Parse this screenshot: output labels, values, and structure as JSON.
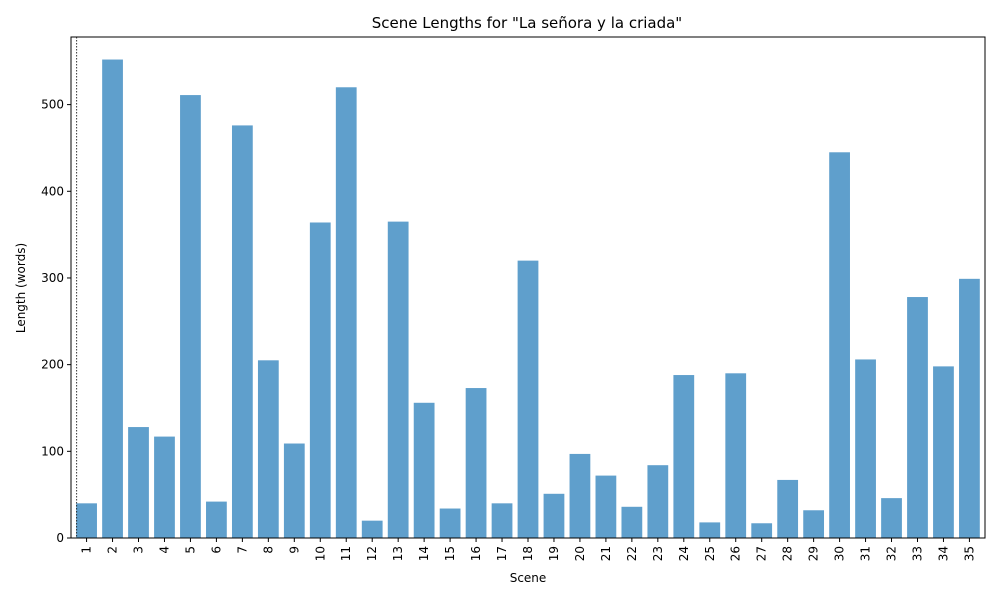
{
  "chart_data": {
    "type": "bar",
    "title": "Scene Lengths for \"La señora y la criada\"",
    "xlabel": "Scene",
    "ylabel": "Length (words)",
    "ylim": [
      0,
      578
    ],
    "yticks": [
      0,
      100,
      200,
      300,
      400,
      500
    ],
    "grid": false,
    "bar_color": "#5f9fcc",
    "categories": [
      "1",
      "2",
      "3",
      "4",
      "5",
      "6",
      "7",
      "8",
      "9",
      "10",
      "11",
      "12",
      "13",
      "14",
      "15",
      "16",
      "17",
      "18",
      "19",
      "20",
      "21",
      "22",
      "23",
      "24",
      "25",
      "26",
      "27",
      "28",
      "29",
      "30",
      "31",
      "32",
      "33",
      "34",
      "35"
    ],
    "values": [
      40,
      552,
      128,
      117,
      511,
      42,
      476,
      205,
      109,
      364,
      520,
      20,
      365,
      156,
      34,
      173,
      40,
      320,
      51,
      97,
      72,
      36,
      84,
      188,
      18,
      190,
      17,
      67,
      32,
      445,
      206,
      46,
      278,
      198,
      299
    ],
    "annotations": [
      {
        "type": "vline",
        "x_category": "1",
        "style": "dotted",
        "color": "#000000"
      }
    ]
  }
}
